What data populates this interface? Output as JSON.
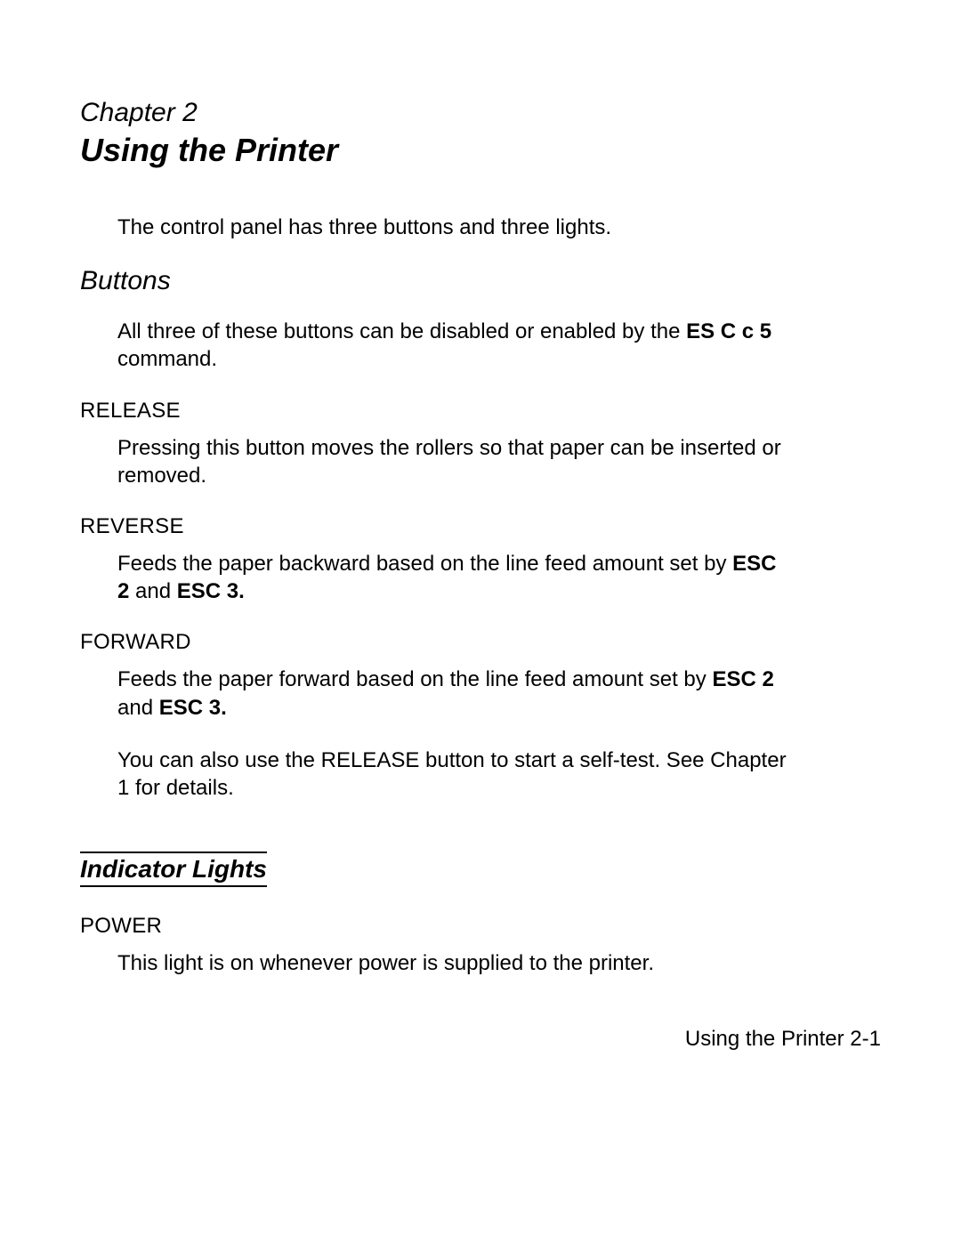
{
  "chapter": {
    "label": "Chapter 2",
    "title": "Using the Printer"
  },
  "intro": "The control panel has three buttons and three lights.",
  "buttons_section": {
    "heading": "Buttons",
    "intro_pre": "All three of these buttons can be disabled or enabled by the ",
    "intro_bold": "ES C c 5",
    "intro_post": " command.",
    "items": [
      {
        "name": "RELEASE",
        "desc": "Pressing this button moves the rollers so that paper can be inserted or removed."
      },
      {
        "name": "REVERSE",
        "desc_pre": "Feeds the paper backward based on the line feed amount set by ",
        "desc_bold1": "ESC 2",
        "desc_mid": " and ",
        "desc_bold2": "ESC 3."
      },
      {
        "name": "FORWARD",
        "desc_pre": "Feeds the paper forward based on the line feed amount set by ",
        "desc_bold1": "ESC 2",
        "desc_mid": " and ",
        "desc_bold2": "ESC 3."
      }
    ],
    "extra": "You can also use the RELEASE button to start a self-test. See Chapter 1 for details."
  },
  "lights_section": {
    "heading": "Indicator Lights",
    "items": [
      {
        "name": "POWER",
        "desc": "This light is on whenever power is supplied to the printer."
      }
    ]
  },
  "footer": "Using the Printer 2-1"
}
